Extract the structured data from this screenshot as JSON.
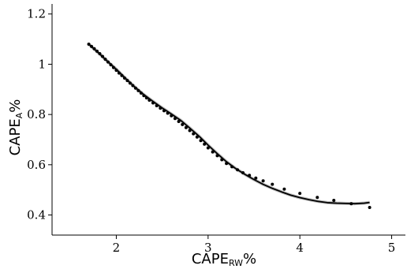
{
  "chart_data": {
    "type": "scatter",
    "title": "",
    "xlabel": {
      "main": "CAPE",
      "sub": "RW",
      "suffix": "%"
    },
    "ylabel": {
      "main": "CAPE",
      "sub": "A",
      "suffix": "%"
    },
    "xlim": [
      1.3,
      5.15
    ],
    "ylim": [
      0.32,
      1.24
    ],
    "xticks": [
      2,
      3,
      4,
      5
    ],
    "xtick_labels": [
      "2",
      "3",
      "4",
      "5"
    ],
    "yticks": [
      0.4,
      0.6,
      0.8,
      1.0,
      1.2
    ],
    "ytick_labels": [
      "0.4",
      "0.6",
      "0.8",
      "1",
      "1.2"
    ],
    "grid": false,
    "series": [
      {
        "type": "scatter",
        "color": "#000000",
        "x": [
          1.7,
          1.73,
          1.76,
          1.79,
          1.82,
          1.85,
          1.88,
          1.91,
          1.94,
          1.97,
          2.0,
          2.03,
          2.06,
          2.09,
          2.12,
          2.15,
          2.18,
          2.21,
          2.24,
          2.27,
          2.3,
          2.33,
          2.36,
          2.4,
          2.44,
          2.48,
          2.52,
          2.56,
          2.6,
          2.64,
          2.68,
          2.72,
          2.76,
          2.8,
          2.84,
          2.88,
          2.92,
          2.96,
          3.0,
          3.05,
          3.1,
          3.15,
          3.2,
          3.26,
          3.32,
          3.38,
          3.45,
          3.52,
          3.6,
          3.7,
          3.83,
          4.0,
          4.19,
          4.37,
          4.56,
          4.76
        ],
        "y": [
          1.08,
          1.071,
          1.062,
          1.052,
          1.042,
          1.031,
          1.02,
          1.009,
          0.998,
          0.987,
          0.976,
          0.965,
          0.955,
          0.945,
          0.935,
          0.925,
          0.915,
          0.905,
          0.895,
          0.885,
          0.875,
          0.866,
          0.857,
          0.846,
          0.835,
          0.825,
          0.815,
          0.805,
          0.795,
          0.784,
          0.772,
          0.76,
          0.748,
          0.736,
          0.723,
          0.71,
          0.696,
          0.682,
          0.667,
          0.651,
          0.636,
          0.62,
          0.605,
          0.592,
          0.58,
          0.568,
          0.558,
          0.547,
          0.536,
          0.522,
          0.503,
          0.486,
          0.47,
          0.458,
          0.445,
          0.43
        ]
      },
      {
        "type": "line",
        "color": "#000000",
        "x": [
          1.7,
          1.8,
          1.9,
          2.0,
          2.1,
          2.2,
          2.3,
          2.4,
          2.5,
          2.6,
          2.7,
          2.8,
          2.9,
          3.0,
          3.1,
          3.2,
          3.3,
          3.4,
          3.5,
          3.6,
          3.7,
          3.8,
          3.9,
          4.0,
          4.1,
          4.2,
          4.3,
          4.4,
          4.5,
          4.6,
          4.7,
          4.76
        ],
        "y": [
          1.08,
          1.047,
          1.013,
          0.98,
          0.944,
          0.91,
          0.879,
          0.852,
          0.826,
          0.802,
          0.777,
          0.746,
          0.714,
          0.678,
          0.644,
          0.612,
          0.585,
          0.562,
          0.541,
          0.522,
          0.506,
          0.492,
          0.479,
          0.469,
          0.461,
          0.454,
          0.449,
          0.447,
          0.446,
          0.445,
          0.447,
          0.45
        ]
      }
    ]
  }
}
